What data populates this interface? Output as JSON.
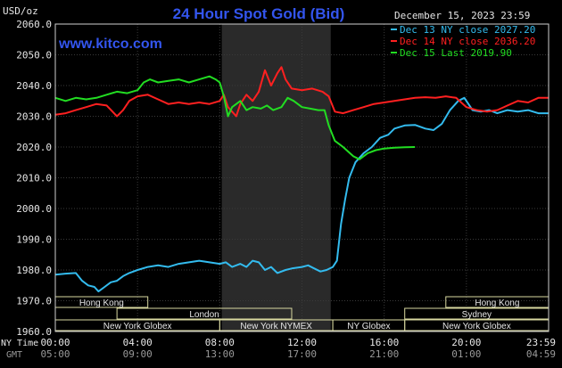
{
  "chart_data": {
    "type": "line",
    "title": "24 Hour Spot Gold (Bid)",
    "watermark": "www.kitco.com",
    "date_label": "December 15, 2023 23:59",
    "ylabel": "USD/oz",
    "ylim": [
      1960,
      2060
    ],
    "yticks": [
      "2060.0",
      "2050.0",
      "2040.0",
      "2030.0",
      "2020.0",
      "2010.0",
      "2000.0",
      "1990.0",
      "1980.0",
      "1970.0",
      "1960.0"
    ],
    "x_axis": {
      "row_labels": [
        "NY Time",
        "GMT"
      ],
      "ny_ticks": [
        "00:00",
        "04:00",
        "08:00",
        "12:00",
        "16:00",
        "20:00",
        "23:59"
      ],
      "gmt_ticks": [
        "05:00",
        "09:00",
        "13:00",
        "17:00",
        "21:00",
        "01:00",
        "04:59"
      ]
    },
    "highlight_band_hours": [
      8.1,
      13.4
    ],
    "sessions": [
      {
        "label": "Hong Kong",
        "start": 0,
        "end": 4.5,
        "row": 0
      },
      {
        "label": "Hong Kong",
        "start": 19.0,
        "end": 24.0,
        "row": 0
      },
      {
        "label": "London",
        "start": 3.0,
        "end": 11.5,
        "row": 1
      },
      {
        "label": "Sydney",
        "start": 17.0,
        "end": 24.0,
        "row": 1
      },
      {
        "label": "New York Globex",
        "start": 0,
        "end": 8.0,
        "row": 2
      },
      {
        "label": "New York NYMEX",
        "start": 8.0,
        "end": 13.5,
        "row": 2
      },
      {
        "label": "NY Globex",
        "start": 13.5,
        "end": 17.0,
        "row": 2
      },
      {
        "label": "New York Globex",
        "start": 17.0,
        "end": 24.0,
        "row": 2
      }
    ],
    "legend_position": "top-right",
    "series": [
      {
        "name": "Dec 13 NY close 2027.20",
        "color": "#33bbee",
        "points": [
          [
            0,
            1978.5
          ],
          [
            0.5,
            1978.8
          ],
          [
            1,
            1979
          ],
          [
            1.3,
            1976.5
          ],
          [
            1.6,
            1975
          ],
          [
            1.9,
            1974.5
          ],
          [
            2.1,
            1973
          ],
          [
            2.4,
            1974.5
          ],
          [
            2.7,
            1976
          ],
          [
            3,
            1976.5
          ],
          [
            3.3,
            1978
          ],
          [
            3.6,
            1979
          ],
          [
            4,
            1980
          ],
          [
            4.5,
            1981
          ],
          [
            5,
            1981.5
          ],
          [
            5.5,
            1981
          ],
          [
            6,
            1982
          ],
          [
            6.5,
            1982.5
          ],
          [
            7,
            1983
          ],
          [
            7.5,
            1982.5
          ],
          [
            8,
            1982
          ],
          [
            8.3,
            1982.5
          ],
          [
            8.6,
            1981
          ],
          [
            9,
            1982
          ],
          [
            9.3,
            1981
          ],
          [
            9.6,
            1983
          ],
          [
            9.9,
            1982.5
          ],
          [
            10.2,
            1980
          ],
          [
            10.5,
            1981
          ],
          [
            10.8,
            1979
          ],
          [
            11.2,
            1980
          ],
          [
            11.5,
            1980.5
          ],
          [
            12,
            1981
          ],
          [
            12.3,
            1981.5
          ],
          [
            12.6,
            1980.5
          ],
          [
            12.9,
            1979.5
          ],
          [
            13.2,
            1980
          ],
          [
            13.5,
            1981
          ],
          [
            13.7,
            1983
          ],
          [
            13.9,
            1995
          ],
          [
            14.1,
            2003
          ],
          [
            14.3,
            2010
          ],
          [
            14.6,
            2015
          ],
          [
            15,
            2018
          ],
          [
            15.4,
            2020
          ],
          [
            15.8,
            2023
          ],
          [
            16.2,
            2024
          ],
          [
            16.5,
            2026
          ],
          [
            17,
            2027
          ],
          [
            17.5,
            2027.2
          ],
          [
            18,
            2026
          ],
          [
            18.4,
            2025.5
          ],
          [
            18.8,
            2027.5
          ],
          [
            19.2,
            2032
          ],
          [
            19.6,
            2035
          ],
          [
            19.9,
            2036
          ],
          [
            20.3,
            2032
          ],
          [
            20.7,
            2031.5
          ],
          [
            21.1,
            2032
          ],
          [
            21.5,
            2031
          ],
          [
            22,
            2032
          ],
          [
            22.5,
            2031.5
          ],
          [
            23,
            2032
          ],
          [
            23.5,
            2031
          ],
          [
            23.99,
            2031
          ]
        ]
      },
      {
        "name": "Dec 14 NY close 2036.20",
        "color": "#ff2020",
        "points": [
          [
            0,
            2030.5
          ],
          [
            0.5,
            2031
          ],
          [
            1,
            2032
          ],
          [
            1.5,
            2033
          ],
          [
            2,
            2034
          ],
          [
            2.5,
            2033.5
          ],
          [
            3,
            2030
          ],
          [
            3.3,
            2032
          ],
          [
            3.6,
            2035
          ],
          [
            4,
            2036.5
          ],
          [
            4.5,
            2037
          ],
          [
            5,
            2035.5
          ],
          [
            5.5,
            2034
          ],
          [
            6,
            2034.5
          ],
          [
            6.5,
            2034
          ],
          [
            7,
            2034.5
          ],
          [
            7.5,
            2034
          ],
          [
            8,
            2035
          ],
          [
            8.2,
            2037
          ],
          [
            8.4,
            2033
          ],
          [
            8.6,
            2031.5
          ],
          [
            8.8,
            2030
          ],
          [
            9,
            2034
          ],
          [
            9.3,
            2037
          ],
          [
            9.6,
            2035
          ],
          [
            9.9,
            2038
          ],
          [
            10.2,
            2045
          ],
          [
            10.5,
            2040
          ],
          [
            10.8,
            2044
          ],
          [
            11,
            2046
          ],
          [
            11.2,
            2042
          ],
          [
            11.5,
            2039
          ],
          [
            12,
            2038.5
          ],
          [
            12.5,
            2039
          ],
          [
            13,
            2038
          ],
          [
            13.3,
            2036.5
          ],
          [
            13.6,
            2031.5
          ],
          [
            14,
            2031
          ],
          [
            14.5,
            2032
          ],
          [
            15,
            2033
          ],
          [
            15.5,
            2034
          ],
          [
            16,
            2034.5
          ],
          [
            16.5,
            2035
          ],
          [
            17,
            2035.5
          ],
          [
            17.5,
            2036
          ],
          [
            18,
            2036.2
          ],
          [
            18.5,
            2036
          ],
          [
            19,
            2036.5
          ],
          [
            19.5,
            2036
          ],
          [
            20,
            2033
          ],
          [
            20.5,
            2032
          ],
          [
            21,
            2031.5
          ],
          [
            21.5,
            2032
          ],
          [
            22,
            2033.5
          ],
          [
            22.5,
            2035
          ],
          [
            23,
            2034.5
          ],
          [
            23.5,
            2036
          ],
          [
            23.99,
            2036
          ]
        ]
      },
      {
        "name": "Dec 15 Last 2019.90",
        "color": "#22dd22",
        "points": [
          [
            0,
            2036
          ],
          [
            0.5,
            2035
          ],
          [
            1,
            2036
          ],
          [
            1.5,
            2035.5
          ],
          [
            2,
            2036
          ],
          [
            2.5,
            2037
          ],
          [
            3,
            2038
          ],
          [
            3.5,
            2037.5
          ],
          [
            4,
            2038.5
          ],
          [
            4.3,
            2041
          ],
          [
            4.6,
            2042
          ],
          [
            5,
            2041
          ],
          [
            5.5,
            2041.5
          ],
          [
            6,
            2042
          ],
          [
            6.5,
            2041
          ],
          [
            7,
            2042
          ],
          [
            7.5,
            2043
          ],
          [
            7.8,
            2042
          ],
          [
            8,
            2041
          ],
          [
            8.2,
            2036.5
          ],
          [
            8.4,
            2030
          ],
          [
            8.6,
            2033
          ],
          [
            9,
            2035
          ],
          [
            9.3,
            2032
          ],
          [
            9.6,
            2033
          ],
          [
            10,
            2032.5
          ],
          [
            10.3,
            2033.5
          ],
          [
            10.6,
            2032
          ],
          [
            11,
            2033
          ],
          [
            11.3,
            2036
          ],
          [
            11.6,
            2035
          ],
          [
            12,
            2033
          ],
          [
            12.4,
            2032.5
          ],
          [
            12.8,
            2032
          ],
          [
            13.1,
            2032
          ],
          [
            13.3,
            2027
          ],
          [
            13.6,
            2022
          ],
          [
            14,
            2020
          ],
          [
            14.5,
            2017
          ],
          [
            14.8,
            2016
          ],
          [
            15.2,
            2018
          ],
          [
            15.6,
            2019
          ],
          [
            16,
            2019.5
          ],
          [
            16.5,
            2019.8
          ],
          [
            17,
            2019.9
          ],
          [
            17.5,
            2020
          ]
        ]
      }
    ]
  }
}
